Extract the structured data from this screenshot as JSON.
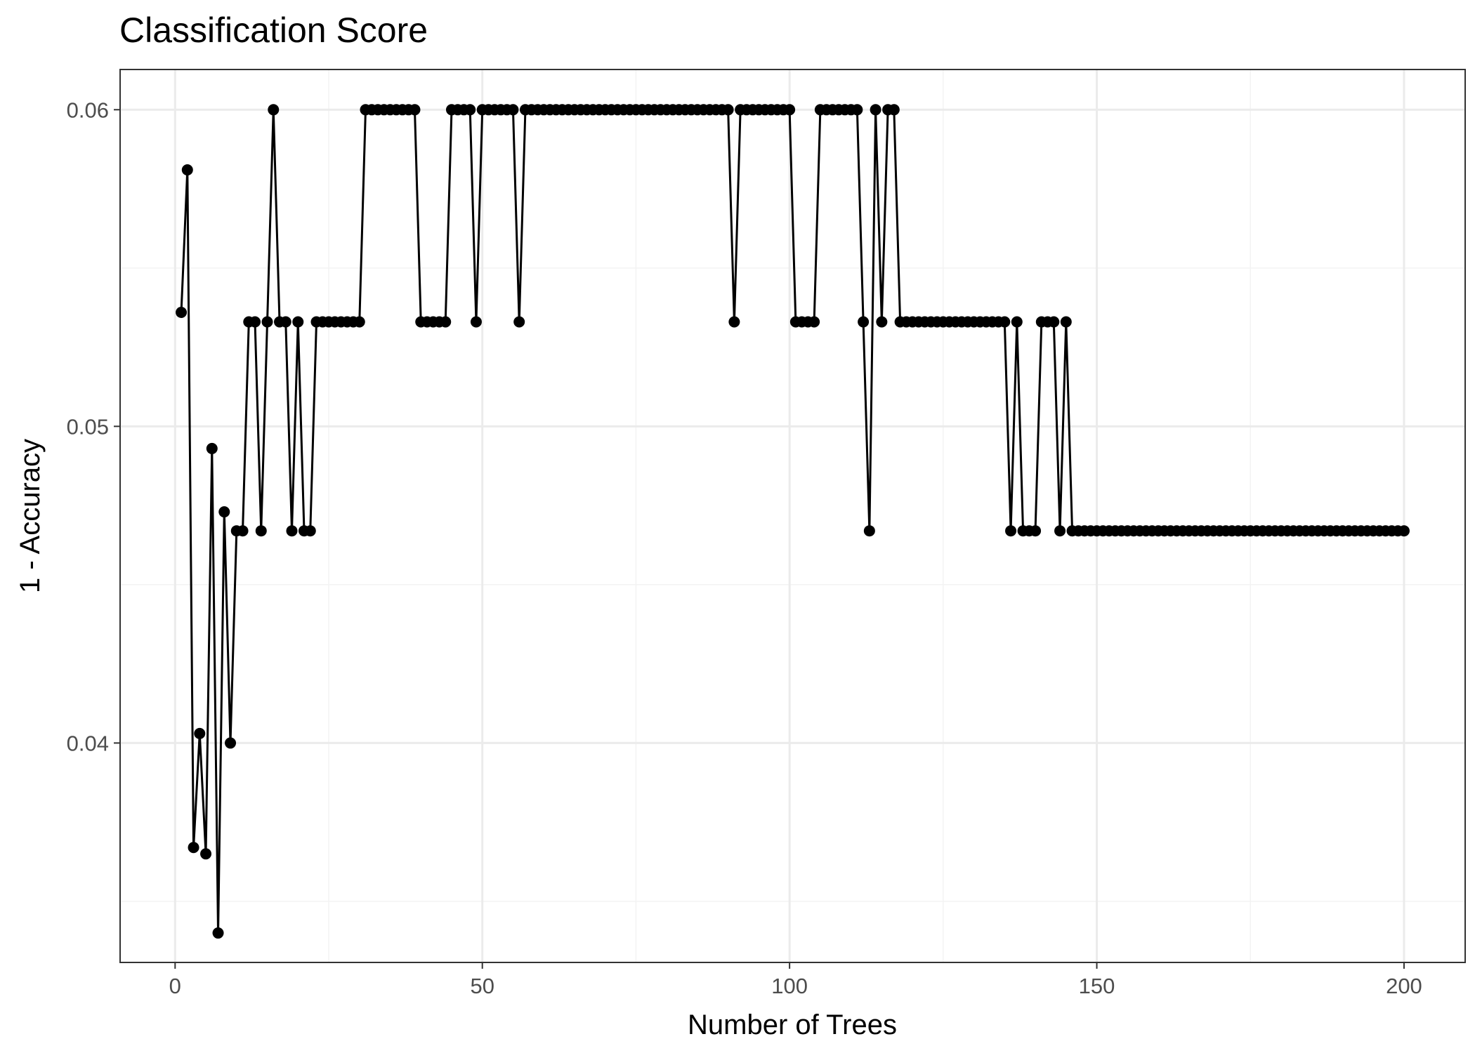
{
  "chart_data": {
    "type": "line",
    "title": "Classification Score",
    "xlabel": "Number of Trees",
    "ylabel": "1 - Accuracy",
    "xlim": [
      -8.95,
      209.95
    ],
    "ylim": [
      0.03307,
      0.06127
    ],
    "x_ticks": [
      0,
      50,
      100,
      150,
      200
    ],
    "x_tick_labels": [
      "0",
      "50",
      "100",
      "150",
      "200"
    ],
    "y_ticks": [
      0.04,
      0.05,
      0.06
    ],
    "y_tick_labels": [
      "0.04",
      "0.05",
      "0.06"
    ],
    "x_minor_ticks": [
      25,
      75,
      125,
      175
    ],
    "y_minor_ticks": [
      0.035,
      0.045,
      0.055
    ],
    "grid": true,
    "legend": "none",
    "x_start": 1,
    "x_step": 1,
    "series": [
      {
        "values": [
          0.0536,
          0.0581,
          0.0367,
          0.0403,
          0.0365,
          0.0493,
          0.034,
          0.0473,
          0.04,
          0.0467,
          0.0467,
          0.0533,
          0.0533,
          0.0467,
          0.0533,
          0.06,
          0.0533,
          0.0533,
          0.0467,
          0.0533,
          0.0467,
          0.0467,
          0.0533,
          0.0533,
          0.0533,
          0.0533,
          0.0533,
          0.0533,
          0.0533,
          0.0533,
          0.06,
          0.06,
          0.06,
          0.06,
          0.06,
          0.06,
          0.06,
          0.06,
          0.06,
          0.0533,
          0.0533,
          0.0533,
          0.0533,
          0.0533,
          0.06,
          0.06,
          0.06,
          0.06,
          0.0533,
          0.06,
          0.06,
          0.06,
          0.06,
          0.06,
          0.06,
          0.0533,
          0.06,
          0.06,
          0.06,
          0.06,
          0.06,
          0.06,
          0.06,
          0.06,
          0.06,
          0.06,
          0.06,
          0.06,
          0.06,
          0.06,
          0.06,
          0.06,
          0.06,
          0.06,
          0.06,
          0.06,
          0.06,
          0.06,
          0.06,
          0.06,
          0.06,
          0.06,
          0.06,
          0.06,
          0.06,
          0.06,
          0.06,
          0.06,
          0.06,
          0.06,
          0.0533,
          0.06,
          0.06,
          0.06,
          0.06,
          0.06,
          0.06,
          0.06,
          0.06,
          0.06,
          0.0533,
          0.0533,
          0.0533,
          0.0533,
          0.06,
          0.06,
          0.06,
          0.06,
          0.06,
          0.06,
          0.06,
          0.0533,
          0.0467,
          0.06,
          0.0533,
          0.06,
          0.06,
          0.0533,
          0.0533,
          0.0533,
          0.0533,
          0.0533,
          0.0533,
          0.0533,
          0.0533,
          0.0533,
          0.0533,
          0.0533,
          0.0533,
          0.0533,
          0.0533,
          0.0533,
          0.0533,
          0.0533,
          0.0533,
          0.0467,
          0.0533,
          0.0467,
          0.0467,
          0.0467,
          0.0533,
          0.0533,
          0.0533,
          0.0467,
          0.0533,
          0.0467,
          0.0467,
          0.0467,
          0.0467,
          0.0467,
          0.0467,
          0.0467,
          0.0467,
          0.0467,
          0.0467,
          0.0467,
          0.0467,
          0.0467,
          0.0467,
          0.0467,
          0.0467,
          0.0467,
          0.0467,
          0.0467,
          0.0467,
          0.0467,
          0.0467,
          0.0467,
          0.0467,
          0.0467,
          0.0467,
          0.0467,
          0.0467,
          0.0467,
          0.0467,
          0.0467,
          0.0467,
          0.0467,
          0.0467,
          0.0467,
          0.0467,
          0.0467,
          0.0467,
          0.0467,
          0.0467,
          0.0467,
          0.0467,
          0.0467,
          0.0467,
          0.0467,
          0.0467,
          0.0467,
          0.0467,
          0.0467,
          0.0467,
          0.0467,
          0.0467,
          0.0467,
          0.0467,
          0.0467
        ]
      }
    ]
  },
  "colors": {
    "series": "#000000",
    "panel_border": "#333333",
    "grid_major": "#ebebeb",
    "grid_minor": "#f3f3f3",
    "tick_label": "#4d4d4d",
    "text": "#000000",
    "background": "#ffffff"
  }
}
